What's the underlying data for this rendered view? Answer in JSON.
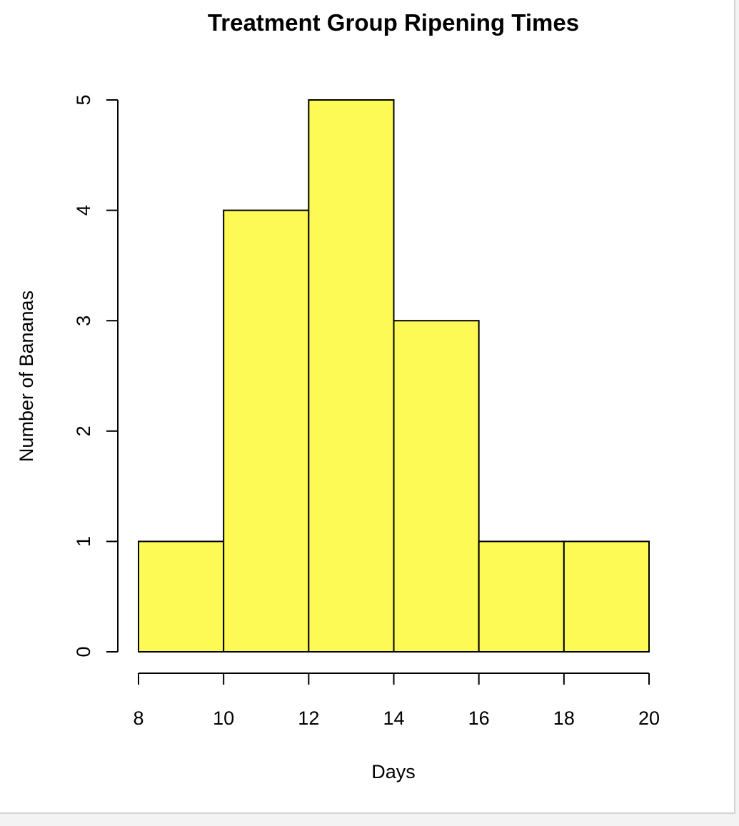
{
  "chart_data": {
    "type": "bar",
    "subtype": "histogram",
    "title": "Treatment Group Ripening Times",
    "xlabel": "Days",
    "ylabel": "Number of Bananas",
    "bins": [
      {
        "start": 8,
        "end": 10,
        "count": 1
      },
      {
        "start": 10,
        "end": 12,
        "count": 4
      },
      {
        "start": 12,
        "end": 14,
        "count": 5
      },
      {
        "start": 14,
        "end": 16,
        "count": 3
      },
      {
        "start": 16,
        "end": 18,
        "count": 1
      },
      {
        "start": 18,
        "end": 20,
        "count": 1
      }
    ],
    "x_ticks": [
      "8",
      "10",
      "12",
      "14",
      "16",
      "18",
      "20"
    ],
    "y_ticks": [
      "0",
      "1",
      "2",
      "3",
      "4",
      "5"
    ],
    "xlim": [
      8,
      20
    ],
    "ylim": [
      0,
      5
    ],
    "grid": false,
    "legend": "none",
    "colors": {
      "bar_fill": "#fdfa55",
      "bar_stroke": "#000000"
    }
  }
}
